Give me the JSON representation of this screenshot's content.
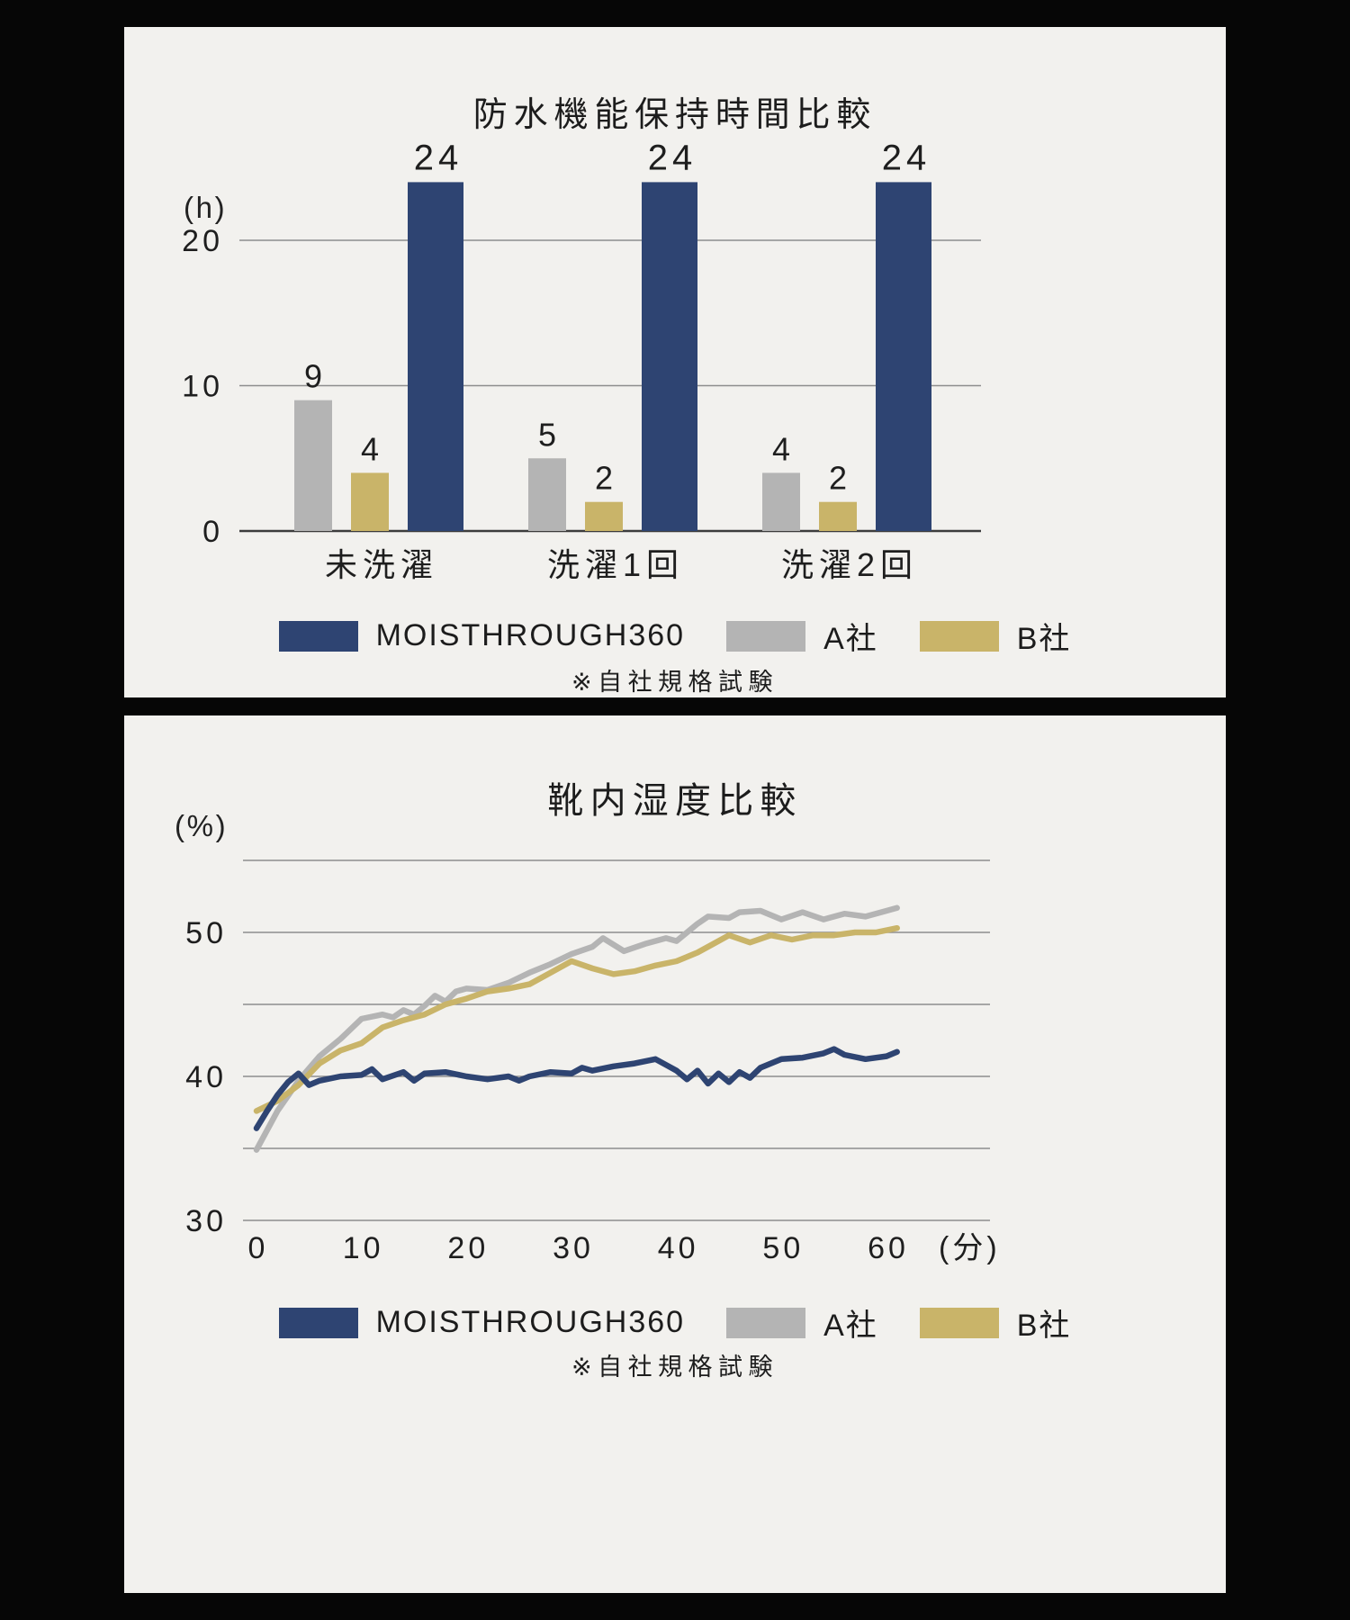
{
  "colors": {
    "navy": "#2e4472",
    "gray": "#b4b4b4",
    "gold": "#c9b469",
    "panel_bg": "#f2f1ee",
    "page_bg": "#060606",
    "gridline": "#8d8d8d",
    "axis": "#3c3c3c"
  },
  "chart_data": [
    {
      "type": "bar",
      "title": "防水機能保持時間比較",
      "unit_label": "(h)",
      "categories": [
        "未洗濯",
        "洗濯1回",
        "洗濯2回"
      ],
      "series": [
        {
          "name": "A社",
          "color_key": "gray",
          "values": [
            9,
            5,
            4
          ]
        },
        {
          "name": "B社",
          "color_key": "gold",
          "values": [
            4,
            2,
            2
          ]
        },
        {
          "name": "MOISTHROUGH360",
          "color_key": "navy",
          "values": [
            24,
            24,
            24
          ]
        }
      ],
      "yticks": [
        0,
        10,
        20
      ],
      "ylim": [
        0,
        24
      ],
      "grid": true,
      "legend": [
        {
          "name": "MOISTHROUGH360",
          "color_key": "navy"
        },
        {
          "name": "A社",
          "color_key": "gray"
        },
        {
          "name": "B社",
          "color_key": "gold"
        }
      ],
      "footnote": "※自社規格試験"
    },
    {
      "type": "line",
      "title": "靴内湿度比較",
      "unit_label": "(%)",
      "x_unit": "(分)",
      "xticks": [
        0,
        10,
        20,
        30,
        40,
        50,
        60
      ],
      "yticks": [
        50,
        40,
        30
      ],
      "gridlines": [
        30,
        35,
        40,
        45,
        50,
        55
      ],
      "ylim": [
        30,
        55
      ],
      "xlim": [
        0,
        61
      ],
      "grid": true,
      "series": [
        {
          "name": "A社",
          "color_key": "gray",
          "points": [
            [
              0,
              34.9
            ],
            [
              2,
              37.6
            ],
            [
              4,
              39.7
            ],
            [
              6,
              41.4
            ],
            [
              8,
              42.6
            ],
            [
              10,
              44.0
            ],
            [
              12,
              44.3
            ],
            [
              13,
              44.1
            ],
            [
              14,
              44.6
            ],
            [
              15,
              44.3
            ],
            [
              16,
              44.9
            ],
            [
              17,
              45.6
            ],
            [
              18,
              45.2
            ],
            [
              19,
              45.9
            ],
            [
              20,
              46.1
            ],
            [
              22,
              46.0
            ],
            [
              24,
              46.5
            ],
            [
              26,
              47.2
            ],
            [
              28,
              47.8
            ],
            [
              30,
              48.5
            ],
            [
              32,
              49.0
            ],
            [
              33,
              49.6
            ],
            [
              35,
              48.7
            ],
            [
              37,
              49.2
            ],
            [
              39,
              49.6
            ],
            [
              40,
              49.4
            ],
            [
              42,
              50.6
            ],
            [
              43,
              51.1
            ],
            [
              45,
              51.0
            ],
            [
              46,
              51.4
            ],
            [
              48,
              51.5
            ],
            [
              50,
              50.9
            ],
            [
              52,
              51.4
            ],
            [
              54,
              50.9
            ],
            [
              56,
              51.3
            ],
            [
              58,
              51.1
            ],
            [
              60,
              51.5
            ],
            [
              61,
              51.7
            ]
          ]
        },
        {
          "name": "B社",
          "color_key": "gold",
          "points": [
            [
              0,
              37.6
            ],
            [
              2,
              38.3
            ],
            [
              4,
              39.4
            ],
            [
              6,
              40.9
            ],
            [
              8,
              41.8
            ],
            [
              10,
              42.3
            ],
            [
              12,
              43.4
            ],
            [
              14,
              43.9
            ],
            [
              16,
              44.3
            ],
            [
              18,
              45.0
            ],
            [
              20,
              45.4
            ],
            [
              22,
              45.9
            ],
            [
              24,
              46.1
            ],
            [
              26,
              46.4
            ],
            [
              28,
              47.2
            ],
            [
              30,
              48.0
            ],
            [
              32,
              47.5
            ],
            [
              34,
              47.1
            ],
            [
              36,
              47.3
            ],
            [
              38,
              47.7
            ],
            [
              40,
              48.0
            ],
            [
              42,
              48.6
            ],
            [
              44,
              49.4
            ],
            [
              45,
              49.8
            ],
            [
              47,
              49.3
            ],
            [
              49,
              49.8
            ],
            [
              51,
              49.5
            ],
            [
              53,
              49.8
            ],
            [
              55,
              49.8
            ],
            [
              57,
              50.0
            ],
            [
              59,
              50.0
            ],
            [
              61,
              50.3
            ]
          ]
        },
        {
          "name": "MOISTHROUGH360",
          "color_key": "navy",
          "points": [
            [
              0,
              36.4
            ],
            [
              1,
              37.6
            ],
            [
              2,
              38.7
            ],
            [
              3,
              39.6
            ],
            [
              4,
              40.2
            ],
            [
              5,
              39.4
            ],
            [
              6,
              39.7
            ],
            [
              8,
              40.0
            ],
            [
              10,
              40.1
            ],
            [
              11,
              40.5
            ],
            [
              12,
              39.8
            ],
            [
              14,
              40.3
            ],
            [
              15,
              39.7
            ],
            [
              16,
              40.2
            ],
            [
              18,
              40.3
            ],
            [
              20,
              40.0
            ],
            [
              22,
              39.8
            ],
            [
              24,
              40.0
            ],
            [
              25,
              39.7
            ],
            [
              26,
              40.0
            ],
            [
              28,
              40.3
            ],
            [
              30,
              40.2
            ],
            [
              31,
              40.6
            ],
            [
              32,
              40.4
            ],
            [
              34,
              40.7
            ],
            [
              36,
              40.9
            ],
            [
              38,
              41.2
            ],
            [
              39,
              40.8
            ],
            [
              40,
              40.4
            ],
            [
              41,
              39.8
            ],
            [
              42,
              40.4
            ],
            [
              43,
              39.5
            ],
            [
              44,
              40.2
            ],
            [
              45,
              39.6
            ],
            [
              46,
              40.3
            ],
            [
              47,
              39.9
            ],
            [
              48,
              40.6
            ],
            [
              50,
              41.2
            ],
            [
              52,
              41.3
            ],
            [
              54,
              41.6
            ],
            [
              55,
              41.9
            ],
            [
              56,
              41.5
            ],
            [
              58,
              41.2
            ],
            [
              60,
              41.4
            ],
            [
              61,
              41.7
            ]
          ]
        }
      ],
      "legend": [
        {
          "name": "MOISTHROUGH360",
          "color_key": "navy"
        },
        {
          "name": "A社",
          "color_key": "gray"
        },
        {
          "name": "B社",
          "color_key": "gold"
        }
      ],
      "footnote": "※自社規格試験"
    }
  ]
}
